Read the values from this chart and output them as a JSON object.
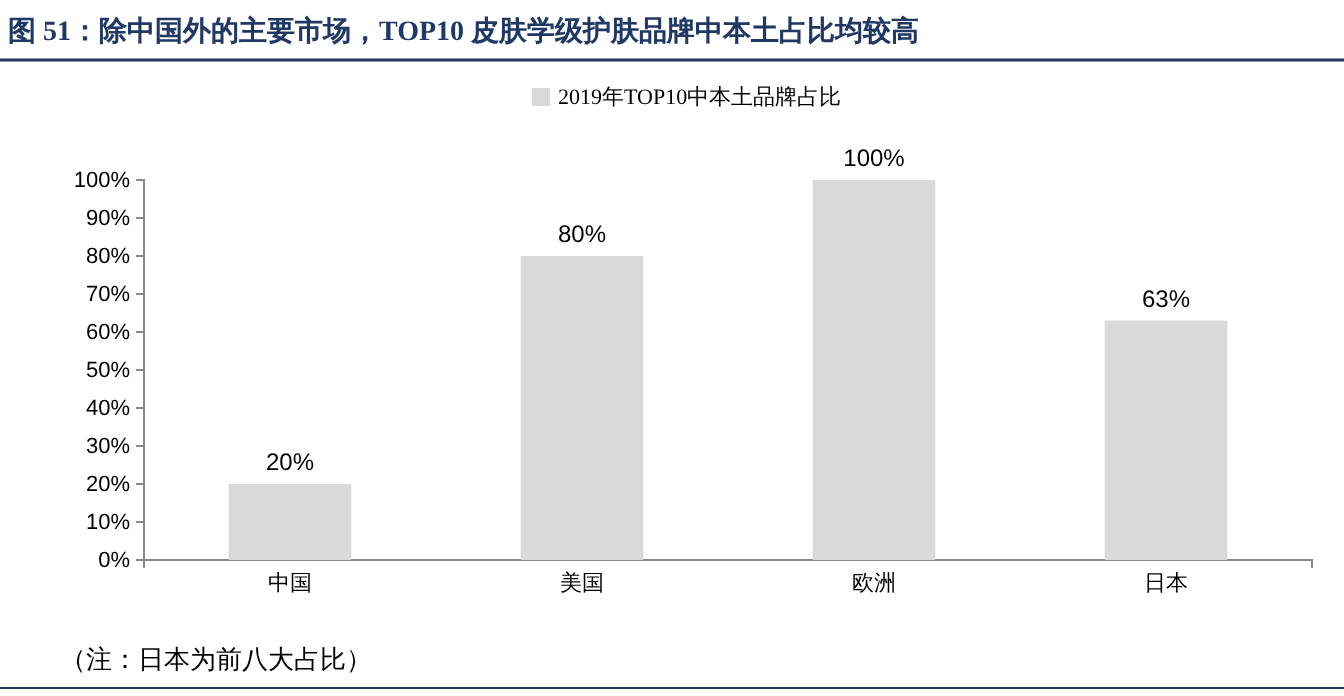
{
  "chart_data": {
    "type": "bar",
    "title": "图 51：除中国外的主要市场，TOP10 皮肤学级护肤品牌中本土占比均较高",
    "categories": [
      "中国",
      "美国",
      "欧洲",
      "日本"
    ],
    "series": [
      {
        "name": "2019年TOP10中本土品牌占比",
        "color": "#d9d9d9",
        "values": [
          20,
          80,
          100,
          63
        ]
      }
    ],
    "value_labels": [
      "20%",
      "80%",
      "100%",
      "63%"
    ],
    "ylim": [
      0,
      100
    ],
    "yticks": [
      {
        "value": 0,
        "label": "0%"
      },
      {
        "value": 10,
        "label": "10%"
      },
      {
        "value": 20,
        "label": "20%"
      },
      {
        "value": 30,
        "label": "30%"
      },
      {
        "value": 40,
        "label": "40%"
      },
      {
        "value": 50,
        "label": "50%"
      },
      {
        "value": 60,
        "label": "60%"
      },
      {
        "value": 70,
        "label": "70%"
      },
      {
        "value": 80,
        "label": "80%"
      },
      {
        "value": 90,
        "label": "90%"
      },
      {
        "value": 100,
        "label": "100%"
      }
    ],
    "legend": "top",
    "grid": false,
    "annotations": [
      "（注：日本为前八大占比）"
    ]
  }
}
